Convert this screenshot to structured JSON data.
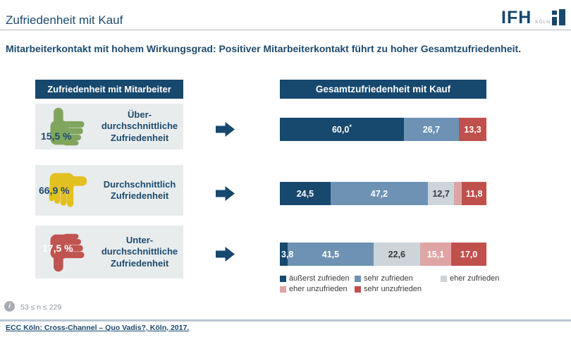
{
  "page": {
    "title": "Zufriedenheit mit Kauf",
    "subtitle": "Mitarbeiterkontakt mit hohem Wirkungsgrad: Positiver Mitarbeiterkontakt führt zu hoher Gesamtzufriedenheit.",
    "logo": {
      "text": "IFH",
      "sub": "KÖLN"
    },
    "footnote": "53 ≤ n ≤ 229",
    "source": "ECC Köln: Cross-Channel – Quo Vadis?, Köln, 2017.",
    "colors": {
      "navy": "#17486e",
      "panel_gray": "#e9eced",
      "rule_gray": "#b3bac0",
      "footer_rule": "#b9c6d3",
      "dash_line": "#ddd79c"
    }
  },
  "left_panel": {
    "header": "Zufriedenheit mit Mitarbeiter",
    "rows": [
      {
        "icon": "thumb-up-icon",
        "icon_color": "#80a55e",
        "percent": "15,5 %",
        "percent_color": "#1d4b6f",
        "percent_pos": "bottom",
        "label": "Über-\ndurchschnittliche\nZufriedenheit"
      },
      {
        "icon": "thumb-side-icon",
        "icon_color": "#e2c01f",
        "percent": "66,9 %",
        "percent_color": "#1d4b6f",
        "percent_pos": "middle",
        "label": "Durchschnittlich\nZufriedenheit"
      },
      {
        "icon": "thumb-down-icon",
        "icon_color": "#c05450",
        "percent": "17,5 %",
        "percent_color": "#ffffff",
        "percent_pos": "top",
        "label": "Unter-\ndurchschnittliche\nZufriedenheit"
      }
    ]
  },
  "right_panel": {
    "header": "Gesamtzufriedenheit mit Kauf"
  },
  "chart_data": {
    "type": "bar",
    "subtype": "horizontal-stacked-100",
    "title": "Gesamtzufriedenheit mit Kauf",
    "unit": "%",
    "xlim": [
      0,
      100
    ],
    "legend_position": "bottom",
    "categories": [
      "Überdurchschnittliche Zufriedenheit",
      "Durchschnittlich Zufriedenheit",
      "Unterdurchschnittliche Zufriedenheit"
    ],
    "series": [
      {
        "name": "äußerst zufrieden",
        "color": "#17486e",
        "label_color": "#ffffff",
        "values": [
          60.0,
          24.5,
          3.8
        ]
      },
      {
        "name": "sehr zufrieden",
        "color": "#6d92b4",
        "label_color": "#ffffff",
        "values": [
          26.7,
          47.2,
          41.5
        ]
      },
      {
        "name": "eher zufrieden",
        "color": "#cdd4da",
        "label_color": "#3b3b3b",
        "values": [
          0,
          12.7,
          22.6
        ]
      },
      {
        "name": "eher unzufrieden",
        "color": "#dfa5a4",
        "label_color": "#ffffff",
        "values": [
          0,
          3.8,
          15.1
        ]
      },
      {
        "name": "sehr unzufrieden",
        "color": "#bf504c",
        "label_color": "#ffffff",
        "values": [
          13.3,
          11.8,
          17.0
        ]
      }
    ],
    "bar_labels": [
      [
        "60,0*",
        "26,7",
        "",
        "",
        "13,3"
      ],
      [
        "24,5",
        "47,2",
        "12,7",
        "",
        "11,8"
      ],
      [
        "3,8",
        "41,5",
        "22,6",
        "15,1",
        "17,0"
      ]
    ]
  }
}
